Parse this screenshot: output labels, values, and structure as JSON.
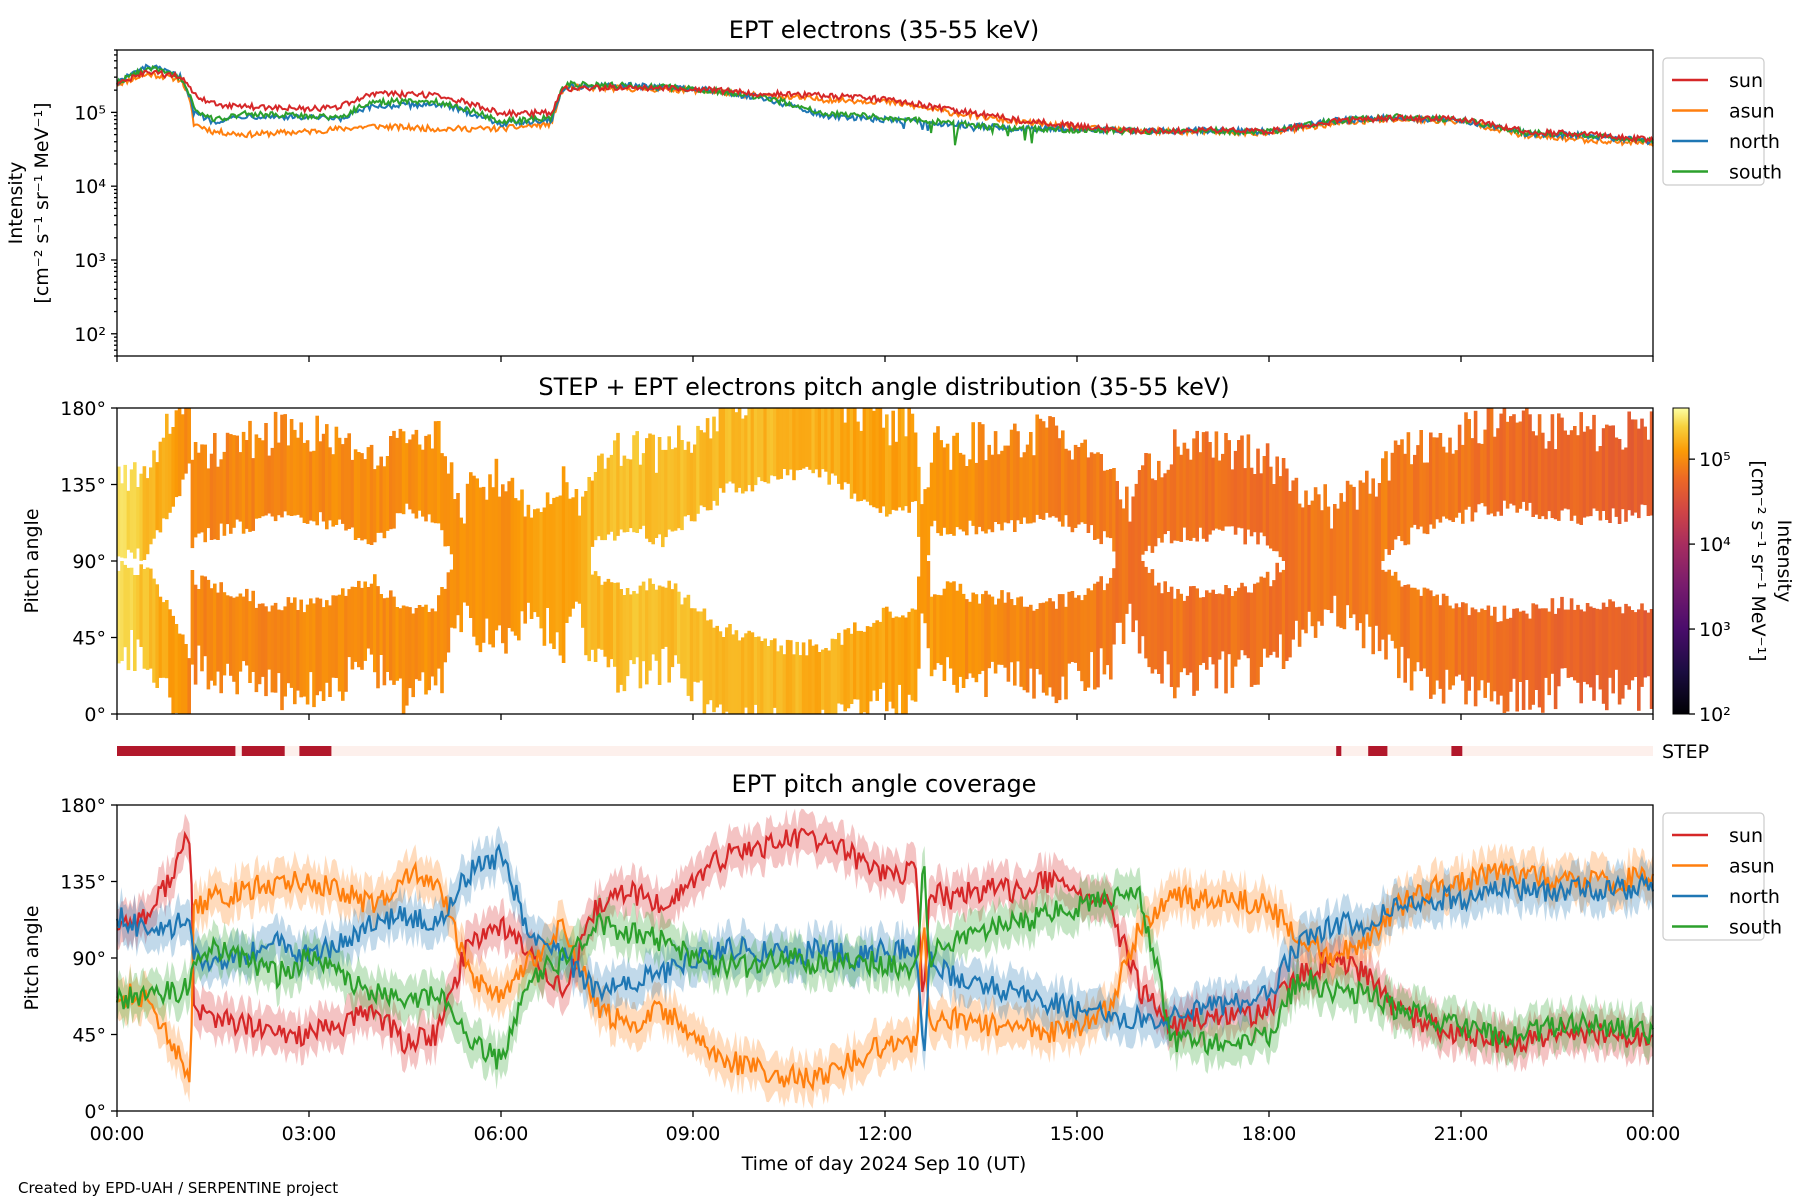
{
  "colors": {
    "sun": "#d62728",
    "asun": "#ff7f0e",
    "north": "#1f77b4",
    "south": "#2ca02c",
    "step_active": "#b2182b",
    "step_inactive": "#fdf0ec"
  },
  "credit": "Created by EPD-UAH / SERPENTINE project",
  "chart_data": [
    {
      "id": "intensity",
      "type": "line",
      "title": "EPT electrons (35-55 keV)",
      "ylabel": [
        "Intensity",
        "[cm⁻² s⁻¹ sr⁻¹ MeV⁻¹]"
      ],
      "yscale": "log",
      "ylim": [
        50,
        700000
      ],
      "yticks": [
        {
          "v": 100,
          "label": "10²"
        },
        {
          "v": 1000,
          "label": "10³"
        },
        {
          "v": 10000,
          "label": "10⁴"
        },
        {
          "v": 100000,
          "label": "10⁵"
        }
      ],
      "xlim": [
        0,
        24
      ],
      "legend": "outside-right",
      "x": [
        0,
        0.5,
        1,
        1.2,
        1.5,
        2,
        3,
        3.5,
        4,
        5,
        6,
        6.8,
        7,
        8,
        9,
        10,
        11,
        12,
        13,
        14,
        15,
        16,
        17,
        18,
        19,
        20,
        21,
        22,
        23,
        24
      ],
      "series": [
        {
          "name": "sun",
          "values": [
            240000,
            350000,
            300000,
            170000,
            130000,
            120000,
            110000,
            120000,
            180000,
            170000,
            95000,
            100000,
            210000,
            220000,
            210000,
            180000,
            170000,
            150000,
            110000,
            80000,
            65000,
            55000,
            58000,
            55000,
            75000,
            85000,
            80000,
            55000,
            50000,
            42000
          ]
        },
        {
          "name": "asun",
          "values": [
            240000,
            330000,
            280000,
            70000,
            55000,
            50000,
            55000,
            60000,
            65000,
            60000,
            60000,
            70000,
            220000,
            210000,
            200000,
            170000,
            150000,
            140000,
            100000,
            75000,
            62000,
            55000,
            55000,
            52000,
            70000,
            80000,
            75000,
            48000,
            42000,
            38000
          ]
        },
        {
          "name": "north",
          "values": [
            250000,
            420000,
            300000,
            100000,
            75000,
            90000,
            85000,
            80000,
            120000,
            130000,
            70000,
            80000,
            220000,
            230000,
            210000,
            160000,
            90000,
            80000,
            70000,
            60000,
            60000,
            56000,
            57000,
            55000,
            78000,
            85000,
            78000,
            52000,
            48000,
            40000
          ]
        },
        {
          "name": "south",
          "values": [
            250000,
            400000,
            290000,
            110000,
            80000,
            95000,
            90000,
            85000,
            140000,
            140000,
            75000,
            85000,
            240000,
            230000,
            210000,
            165000,
            100000,
            85000,
            72000,
            60000,
            58000,
            55000,
            57000,
            54000,
            76000,
            87000,
            80000,
            53000,
            48000,
            41000
          ]
        }
      ]
    },
    {
      "id": "pad",
      "type": "heatmap",
      "title": "STEP + EPT electrons pitch angle distribution (35-55 keV)",
      "ylabel": "Pitch angle",
      "ylim": [
        0,
        180
      ],
      "yticks": [
        "0°",
        "45°",
        "90°",
        "135°",
        "180°"
      ],
      "xlim": [
        0,
        24
      ],
      "colorbar": {
        "label": [
          "Intensity",
          "[cm⁻² s⁻¹ sr⁻¹ MeV⁻¹]"
        ],
        "scale": "log",
        "range": [
          100,
          400000
        ],
        "ticks": [
          {
            "v": 100,
            "label": "10²"
          },
          {
            "v": 1000,
            "label": "10³"
          },
          {
            "v": 10000,
            "label": "10⁴"
          },
          {
            "v": 100000,
            "label": "10⁵"
          }
        ]
      },
      "intensity_by_hour": [
        [
          0,
          300000
        ],
        [
          1.2,
          90000
        ],
        [
          3,
          95000
        ],
        [
          6,
          110000
        ],
        [
          8,
          200000
        ],
        [
          10,
          180000
        ],
        [
          12,
          140000
        ],
        [
          14,
          90000
        ],
        [
          16,
          70000
        ],
        [
          18,
          65000
        ],
        [
          20,
          80000
        ],
        [
          22,
          60000
        ],
        [
          24,
          45000
        ]
      ]
    },
    {
      "id": "step",
      "type": "bar",
      "label": "STEP",
      "active_intervals_hours": [
        [
          0,
          1.85
        ],
        [
          1.95,
          2.62
        ],
        [
          2.85,
          3.35
        ],
        [
          19.05,
          19.13
        ],
        [
          19.55,
          19.85
        ],
        [
          20.85,
          21.02
        ]
      ]
    },
    {
      "id": "coverage",
      "type": "line",
      "title": "EPT pitch angle coverage",
      "ylabel": "Pitch angle",
      "xlabel": "Time of day 2024 Sep 10 (UT)",
      "ylim": [
        0,
        180
      ],
      "yticks": [
        "0°",
        "45°",
        "90°",
        "135°",
        "180°"
      ],
      "xticks": [
        "00:00",
        "03:00",
        "06:00",
        "09:00",
        "12:00",
        "15:00",
        "18:00",
        "21:00",
        "00:00"
      ],
      "xlim": [
        0,
        24
      ],
      "legend": "outside-right",
      "band_halfwidth_deg": 12,
      "x": [
        0,
        0.5,
        1,
        1.15,
        1.2,
        1.5,
        2,
        2.5,
        3,
        3.5,
        4,
        4.5,
        5,
        5.5,
        6,
        6.5,
        7,
        7.5,
        8,
        8.5,
        9,
        9.5,
        10,
        10.5,
        11,
        11.5,
        12,
        12.5,
        12.6,
        12.7,
        13,
        13.5,
        14,
        14.5,
        15,
        15.5,
        16,
        16.5,
        17,
        17.5,
        18,
        18.5,
        19,
        19.5,
        20,
        20.5,
        21,
        21.5,
        22,
        22.5,
        23,
        23.5,
        24
      ],
      "series": [
        {
          "name": "sun",
          "values": [
            110,
            115,
            150,
            165,
            60,
            55,
            50,
            45,
            45,
            50,
            60,
            40,
            45,
            100,
            110,
            90,
            70,
            120,
            130,
            120,
            135,
            150,
            155,
            160,
            160,
            150,
            140,
            140,
            60,
            130,
            125,
            130,
            130,
            135,
            130,
            120,
            70,
            50,
            55,
            55,
            60,
            80,
            90,
            80,
            60,
            50,
            45,
            40,
            40,
            45,
            45,
            45,
            40
          ]
        },
        {
          "name": "asun",
          "values": [
            70,
            65,
            30,
            15,
            120,
            125,
            130,
            135,
            135,
            130,
            120,
            140,
            135,
            80,
            70,
            90,
            110,
            60,
            50,
            60,
            45,
            30,
            25,
            20,
            20,
            30,
            40,
            40,
            120,
            50,
            55,
            50,
            50,
            45,
            50,
            60,
            110,
            125,
            125,
            125,
            120,
            100,
            90,
            100,
            120,
            130,
            135,
            140,
            140,
            135,
            135,
            135,
            140
          ]
        },
        {
          "name": "north",
          "values": [
            115,
            105,
            110,
            105,
            90,
            85,
            90,
            100,
            90,
            100,
            110,
            115,
            110,
            140,
            150,
            100,
            90,
            70,
            75,
            80,
            90,
            95,
            95,
            90,
            95,
            90,
            95,
            95,
            30,
            90,
            80,
            75,
            70,
            65,
            60,
            55,
            55,
            55,
            60,
            65,
            70,
            100,
            110,
            110,
            120,
            125,
            125,
            130,
            130,
            130,
            130,
            130,
            135
          ]
        },
        {
          "name": "south",
          "values": [
            65,
            70,
            70,
            75,
            90,
            95,
            90,
            80,
            90,
            80,
            70,
            65,
            70,
            40,
            30,
            80,
            90,
            110,
            105,
            100,
            90,
            85,
            85,
            90,
            85,
            90,
            85,
            85,
            150,
            90,
            100,
            105,
            110,
            115,
            120,
            125,
            125,
            40,
            40,
            40,
            45,
            80,
            70,
            70,
            60,
            55,
            50,
            45,
            45,
            50,
            50,
            50,
            45
          ]
        }
      ]
    }
  ]
}
